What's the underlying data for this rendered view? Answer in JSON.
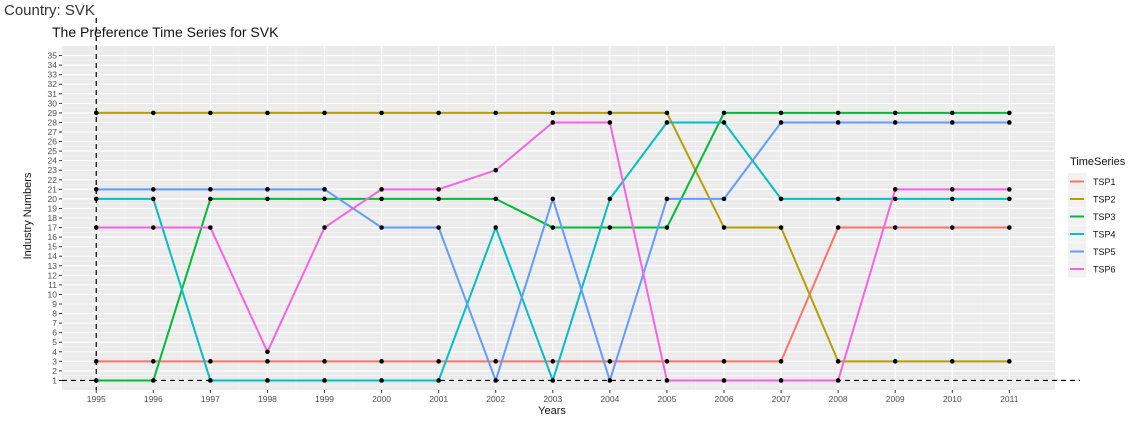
{
  "header": {
    "country_label": "Country: SVK"
  },
  "chart_data": {
    "type": "line",
    "title": "The Preference Time Series for  SVK",
    "xlabel": "Years",
    "ylabel": "Industry Numbers",
    "x": [
      1995,
      1996,
      1997,
      1998,
      1999,
      2000,
      2001,
      2002,
      2003,
      2004,
      2005,
      2006,
      2007,
      2008,
      2009,
      2010,
      2011
    ],
    "yticks": [
      1,
      2,
      3,
      4,
      5,
      6,
      7,
      8,
      9,
      10,
      11,
      12,
      13,
      14,
      15,
      16,
      17,
      18,
      19,
      20,
      21,
      22,
      23,
      24,
      25,
      26,
      27,
      28,
      29,
      30,
      31,
      32,
      33,
      34,
      35
    ],
    "xlim": [
      1994.4,
      2011.8
    ],
    "ylim": [
      0,
      36
    ],
    "grid": true,
    "legend_title": "TimeSeries",
    "legend_position": "right",
    "reference_lines": {
      "vertical_x": 1995,
      "horizontal_y": 1,
      "style": "dashed"
    },
    "series": [
      {
        "name": "TSP1",
        "color": "#F8766D",
        "values": [
          3,
          3,
          3,
          3,
          3,
          3,
          3,
          3,
          3,
          3,
          3,
          3,
          3,
          17,
          17,
          17,
          17
        ]
      },
      {
        "name": "TSP2",
        "color": "#B79F00",
        "values": [
          29,
          29,
          29,
          29,
          29,
          29,
          29,
          29,
          29,
          29,
          29,
          17,
          17,
          3,
          3,
          3,
          3
        ]
      },
      {
        "name": "TSP3",
        "color": "#00BA38",
        "values": [
          1,
          1,
          20,
          20,
          20,
          20,
          20,
          20,
          17,
          17,
          17,
          29,
          29,
          29,
          29,
          29,
          29
        ]
      },
      {
        "name": "TSP4",
        "color": "#00BFC4",
        "values": [
          20,
          20,
          1,
          1,
          1,
          1,
          1,
          17,
          1,
          20,
          28,
          28,
          20,
          20,
          20,
          20,
          20
        ]
      },
      {
        "name": "TSP5",
        "color": "#619CFF",
        "values": [
          21,
          21,
          21,
          21,
          21,
          17,
          17,
          1,
          20,
          1,
          20,
          20,
          28,
          28,
          28,
          28,
          28
        ]
      },
      {
        "name": "TSP6",
        "color": "#F564E3",
        "values": [
          17,
          17,
          17,
          4,
          17,
          21,
          21,
          23,
          28,
          28,
          1,
          1,
          1,
          1,
          21,
          21,
          21
        ]
      }
    ]
  }
}
